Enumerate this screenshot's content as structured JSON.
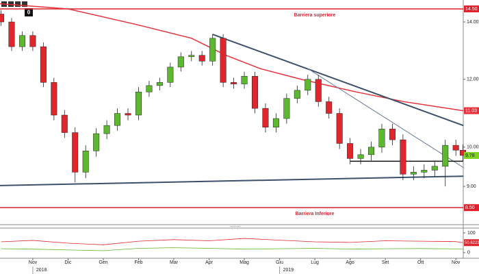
{
  "toolbar_badge": "0",
  "chart_data": {
    "type": "candlestick",
    "log_scale": true,
    "xlim": [
      -0.93,
      12.21
    ],
    "ylim": [
      8.12,
      14.85
    ],
    "xticks": [
      {
        "value": 0,
        "label": "Nov"
      },
      {
        "value": 1,
        "label": "Dic"
      },
      {
        "value": 2,
        "label": "Gen"
      },
      {
        "value": 3,
        "label": "Feb"
      },
      {
        "value": 4,
        "label": "Mar"
      },
      {
        "value": 5,
        "label": "Apr"
      },
      {
        "value": 6,
        "label": "Mag"
      },
      {
        "value": 7,
        "label": "Giu"
      },
      {
        "value": 8,
        "label": "Lug"
      },
      {
        "value": 9,
        "label": "Ago"
      },
      {
        "value": 10,
        "label": "Set"
      },
      {
        "value": 11,
        "label": "Ott"
      },
      {
        "value": 12,
        "label": "Nov"
      }
    ],
    "year_ticks": [
      {
        "value": 0,
        "label": "2018"
      },
      {
        "value": 7,
        "label": "2019"
      }
    ],
    "yticks": [
      {
        "value": 9,
        "label": "9.00"
      },
      {
        "value": 10,
        "label": "10.00"
      },
      {
        "value": 12,
        "label": "12.00"
      },
      {
        "value": 14,
        "label": "14.00"
      }
    ],
    "up_color": "#5cb82e",
    "down_color": "#e0262d",
    "x": [
      -0.9,
      -0.6,
      -0.3,
      0.0,
      0.3,
      0.6,
      0.9,
      1.2,
      1.5,
      1.8,
      2.1,
      2.4,
      2.7,
      3.0,
      3.3,
      3.6,
      3.9,
      4.2,
      4.5,
      4.8,
      5.1,
      5.4,
      5.7,
      6.0,
      6.3,
      6.6,
      6.9,
      7.2,
      7.5,
      7.8,
      8.1,
      8.4,
      8.7,
      9.0,
      9.3,
      9.6,
      9.9,
      10.2,
      10.5,
      10.8,
      11.1,
      11.4,
      11.7,
      12.0,
      12.2
    ],
    "open": [
      14.3,
      14.0,
      13.1,
      13.5,
      13.1,
      11.9,
      10.9,
      10.4,
      9.35,
      9.9,
      10.37,
      10.6,
      10.95,
      10.9,
      11.6,
      11.8,
      11.9,
      12.4,
      12.75,
      12.8,
      12.6,
      13.4,
      11.9,
      11.85,
      12.1,
      11.1,
      10.55,
      10.8,
      11.4,
      11.65,
      12.0,
      11.3,
      10.95,
      10.1,
      9.7,
      9.8,
      10.0,
      10.5,
      10.2,
      9.3,
      9.35,
      9.4,
      9.5,
      10.05,
      9.92
    ],
    "high": [
      14.45,
      14.15,
      13.65,
      13.65,
      13.25,
      12.05,
      11.05,
      10.55,
      10.05,
      10.52,
      10.75,
      11.1,
      11.1,
      11.75,
      11.95,
      12.05,
      12.55,
      12.9,
      12.95,
      12.95,
      13.55,
      13.55,
      12.05,
      12.25,
      12.25,
      11.25,
      10.95,
      11.55,
      11.8,
      12.15,
      12.15,
      11.45,
      11.1,
      10.25,
      9.95,
      10.15,
      10.65,
      10.65,
      10.35,
      9.5,
      9.55,
      9.65,
      10.2,
      10.2,
      10.07
    ],
    "low": [
      13.85,
      12.95,
      12.95,
      12.95,
      11.75,
      10.75,
      10.25,
      9.1,
      9.2,
      9.75,
      10.22,
      10.45,
      10.75,
      10.75,
      11.45,
      11.65,
      11.75,
      12.25,
      12.6,
      12.45,
      12.45,
      11.75,
      11.7,
      11.7,
      10.95,
      10.4,
      10.4,
      10.65,
      11.25,
      11.5,
      11.15,
      10.8,
      9.95,
      9.55,
      9.55,
      9.65,
      9.85,
      10.05,
      9.15,
      9.15,
      9.2,
      9.25,
      9.0,
      9.77,
      9.63
    ],
    "close": [
      14.0,
      13.1,
      13.5,
      13.1,
      11.9,
      10.9,
      10.4,
      9.35,
      9.9,
      10.37,
      10.6,
      10.95,
      10.9,
      11.6,
      11.8,
      11.9,
      12.4,
      12.75,
      12.8,
      12.6,
      13.4,
      11.9,
      11.85,
      12.1,
      11.1,
      10.55,
      10.8,
      11.4,
      11.65,
      12.0,
      11.3,
      10.95,
      10.1,
      9.7,
      9.8,
      10.0,
      10.5,
      10.2,
      9.3,
      9.35,
      9.4,
      9.5,
      10.05,
      9.92,
      9.78
    ],
    "last_color": "#7ed321",
    "moving_average": {
      "color": "#e8303a",
      "x": [
        -0.93,
        1.0,
        2.95,
        4.5,
        5.48,
        6.45,
        7.61,
        9.17,
        10.53,
        12.21
      ],
      "values": [
        14.7,
        14.5,
        13.9,
        13.4,
        12.8,
        12.35,
        12.0,
        11.6,
        11.3,
        11.03
      ]
    },
    "hlines": [
      {
        "value": 14.5,
        "value_label": "14.50",
        "text": "Barriera superiore",
        "color": "#e0202a"
      },
      {
        "value": 8.5,
        "value_label": "8.50",
        "text": "Barriera Inferiore",
        "color": "#e0202a"
      }
    ],
    "trendlines": [
      {
        "x": [
          5.1,
          12.21
        ],
        "values": [
          13.54,
          10.6
        ],
        "color": "#3d4f6b",
        "width": 2
      },
      {
        "x": [
          -0.93,
          12.21
        ],
        "values": [
          9.02,
          9.25
        ],
        "color": "#3d4f6b",
        "width": 2
      },
      {
        "x": [
          7.8,
          12.21
        ],
        "values": [
          12.35,
          9.47
        ],
        "color": "#6d7f9b",
        "width": 1
      },
      {
        "x": [
          9.0,
          12.21
        ],
        "values": [
          9.63,
          9.63
        ],
        "color": "#111111",
        "width": 1.5
      }
    ],
    "indicator": {
      "ylim": [
        -28,
        124
      ],
      "yticks": [
        0,
        100
      ],
      "series": [
        {
          "color": "#e0262d",
          "x": [
            -0.9,
            0,
            1,
            2,
            3,
            4,
            5,
            6,
            7,
            8,
            9,
            10,
            11,
            12,
            12.2
          ],
          "values": [
            55,
            62,
            48,
            40,
            58,
            66,
            60,
            72,
            63,
            55,
            52,
            60,
            58,
            56,
            50.6223
          ]
        },
        {
          "color": "#5cb82e",
          "x": [
            -0.9,
            0,
            1,
            2,
            3,
            4,
            5,
            6,
            7,
            8,
            9,
            10,
            11,
            12,
            12.2
          ],
          "values": [
            20,
            18,
            14,
            10,
            22,
            25,
            22,
            18,
            20,
            22,
            18,
            20,
            21,
            19,
            19
          ]
        }
      ]
    }
  }
}
